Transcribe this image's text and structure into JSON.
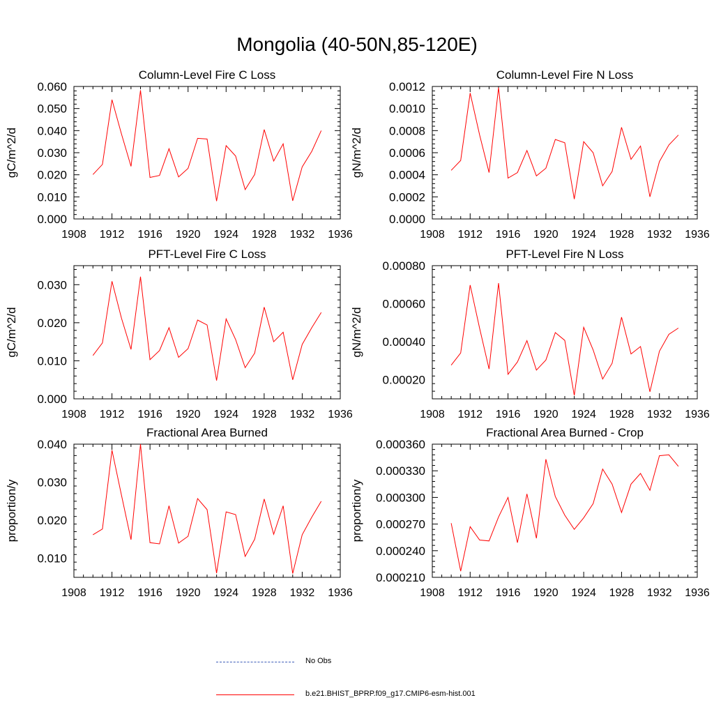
{
  "title": "Mongolia (40-50N,85-120E)",
  "chart_data": [
    {
      "type": "line",
      "title": "Column-Level Fire C Loss",
      "ylabel": "gC/m^2/d",
      "xlim": [
        1908,
        1936
      ],
      "ylim": [
        0,
        0.06
      ],
      "xticks": [
        1908,
        1912,
        1916,
        1920,
        1924,
        1928,
        1932,
        1936
      ],
      "yticks": [
        "0.000",
        "0.010",
        "0.020",
        "0.030",
        "0.040",
        "0.050",
        "0.060"
      ],
      "x": [
        1910,
        1911,
        1912,
        1913,
        1914,
        1915,
        1916,
        1917,
        1918,
        1919,
        1920,
        1921,
        1922,
        1923,
        1924,
        1925,
        1926,
        1927,
        1928,
        1929,
        1930,
        1931,
        1932,
        1933,
        1934
      ],
      "series": [
        {
          "name": "b.e21.BHIST_BPRP.f09_g17.CMIP6-esm-hist.001",
          "color": "#ff0000",
          "values": [
            0.0201,
            0.0247,
            0.054,
            0.0385,
            0.0238,
            0.0583,
            0.0188,
            0.0197,
            0.0318,
            0.019,
            0.0229,
            0.0365,
            0.0362,
            0.0081,
            0.0332,
            0.0285,
            0.0133,
            0.0201,
            0.0405,
            0.0262,
            0.034,
            0.0082,
            0.0236,
            0.0306,
            0.04
          ]
        }
      ]
    },
    {
      "type": "line",
      "title": "Column-Level Fire N Loss",
      "ylabel": "gN/m^2/d",
      "xlim": [
        1908,
        1936
      ],
      "ylim": [
        0,
        0.0012
      ],
      "xticks": [
        1908,
        1912,
        1916,
        1920,
        1924,
        1928,
        1932,
        1936
      ],
      "yticks": [
        "0.0000",
        "0.0002",
        "0.0004",
        "0.0006",
        "0.0008",
        "0.0010",
        "0.0012"
      ],
      "x": [
        1910,
        1911,
        1912,
        1913,
        1914,
        1915,
        1916,
        1917,
        1918,
        1919,
        1920,
        1921,
        1922,
        1923,
        1924,
        1925,
        1926,
        1927,
        1928,
        1929,
        1930,
        1931,
        1932,
        1933,
        1934
      ],
      "series": [
        {
          "name": "b.e21.BHIST_BPRP.f09_g17.CMIP6-esm-hist.001",
          "color": "#ff0000",
          "values": [
            0.00044,
            0.00053,
            0.00114,
            0.00076,
            0.00042,
            0.00119,
            0.00037,
            0.00042,
            0.00062,
            0.00039,
            0.00046,
            0.00072,
            0.00069,
            0.00018,
            0.0007,
            0.0006,
            0.0003,
            0.00043,
            0.00083,
            0.00054,
            0.00066,
            0.0002,
            0.00052,
            0.00067,
            0.00076
          ]
        }
      ]
    },
    {
      "type": "line",
      "title": "PFT-Level Fire C Loss",
      "ylabel": "gC/m^2/d",
      "xlim": [
        1908,
        1936
      ],
      "ylim": [
        0,
        0.035
      ],
      "xticks": [
        1908,
        1912,
        1916,
        1920,
        1924,
        1928,
        1932,
        1936
      ],
      "yticks": [
        "0.000",
        "0.010",
        "0.020",
        "0.030"
      ],
      "x": [
        1910,
        1911,
        1912,
        1913,
        1914,
        1915,
        1916,
        1917,
        1918,
        1919,
        1920,
        1921,
        1922,
        1923,
        1924,
        1925,
        1926,
        1927,
        1928,
        1929,
        1930,
        1931,
        1932,
        1933,
        1934
      ],
      "series": [
        {
          "name": "b.e21.BHIST_BPRP.f09_g17.CMIP6-esm-hist.001",
          "color": "#ff0000",
          "values": [
            0.0114,
            0.0147,
            0.0309,
            0.0212,
            0.013,
            0.0321,
            0.0103,
            0.0127,
            0.0187,
            0.0109,
            0.0132,
            0.0207,
            0.0194,
            0.0048,
            0.021,
            0.0156,
            0.0082,
            0.012,
            0.0241,
            0.015,
            0.0175,
            0.005,
            0.0143,
            0.0187,
            0.0227
          ]
        }
      ]
    },
    {
      "type": "line",
      "title": "PFT-Level Fire N Loss",
      "ylabel": "gN/m^2/d",
      "xlim": [
        1908,
        1936
      ],
      "ylim": [
        0.0001,
        0.0008
      ],
      "xticks": [
        1908,
        1912,
        1916,
        1920,
        1924,
        1928,
        1932,
        1936
      ],
      "yticks": [
        "0.00020",
        "0.00040",
        "0.00060",
        "0.00080"
      ],
      "x": [
        1910,
        1911,
        1912,
        1913,
        1914,
        1915,
        1916,
        1917,
        1918,
        1919,
        1920,
        1921,
        1922,
        1923,
        1924,
        1925,
        1926,
        1927,
        1928,
        1929,
        1930,
        1931,
        1932,
        1933,
        1934
      ],
      "series": [
        {
          "name": "b.e21.BHIST_BPRP.f09_g17.CMIP6-esm-hist.001",
          "color": "#ff0000",
          "values": [
            0.000277,
            0.000341,
            0.000698,
            0.00047,
            0.000257,
            0.000708,
            0.000229,
            0.000294,
            0.000406,
            0.000251,
            0.000304,
            0.000448,
            0.000407,
            0.000118,
            0.000476,
            0.000357,
            0.000204,
            0.000287,
            0.000529,
            0.000336,
            0.000375,
            0.000137,
            0.00035,
            0.000439,
            0.000472
          ]
        }
      ]
    },
    {
      "type": "line",
      "title": "Fractional Area Burned",
      "ylabel": "proportion/y",
      "xlim": [
        1908,
        1936
      ],
      "ylim": [
        0.005,
        0.04
      ],
      "xticks": [
        1908,
        1912,
        1916,
        1920,
        1924,
        1928,
        1932,
        1936
      ],
      "yticks": [
        "0.010",
        "0.020",
        "0.030",
        "0.040"
      ],
      "x": [
        1910,
        1911,
        1912,
        1913,
        1914,
        1915,
        1916,
        1917,
        1918,
        1919,
        1920,
        1921,
        1922,
        1923,
        1924,
        1925,
        1926,
        1927,
        1928,
        1929,
        1930,
        1931,
        1932,
        1933,
        1934
      ],
      "series": [
        {
          "name": "b.e21.BHIST_BPRP.f09_g17.CMIP6-esm-hist.001",
          "color": "#ff0000",
          "values": [
            0.0162,
            0.0177,
            0.0384,
            0.0266,
            0.0149,
            0.04,
            0.0141,
            0.0138,
            0.0238,
            0.014,
            0.0158,
            0.0257,
            0.0228,
            0.0061,
            0.0222,
            0.0215,
            0.0105,
            0.015,
            0.0256,
            0.0163,
            0.0238,
            0.006,
            0.0162,
            0.0208,
            0.025
          ]
        }
      ]
    },
    {
      "type": "line",
      "title": "Fractional Area Burned - Crop",
      "ylabel": "proportion/y",
      "xlim": [
        1908,
        1936
      ],
      "ylim": [
        0.00021,
        0.00036
      ],
      "xticks": [
        1908,
        1912,
        1916,
        1920,
        1924,
        1928,
        1932,
        1936
      ],
      "yticks": [
        "0.000210",
        "0.000240",
        "0.000270",
        "0.000300",
        "0.000330",
        "0.000360"
      ],
      "x": [
        1910,
        1911,
        1912,
        1913,
        1914,
        1915,
        1916,
        1917,
        1918,
        1919,
        1920,
        1921,
        1922,
        1923,
        1924,
        1925,
        1926,
        1927,
        1928,
        1929,
        1930,
        1931,
        1932,
        1933,
        1934
      ],
      "series": [
        {
          "name": "b.e21.BHIST_BPRP.f09_g17.CMIP6-esm-hist.001",
          "color": "#ff0000",
          "values": [
            0.000271,
            0.000217,
            0.000267,
            0.000252,
            0.000251,
            0.000278,
            0.0003,
            0.000249,
            0.000304,
            0.000254,
            0.000343,
            0.000301,
            0.00028,
            0.000264,
            0.000277,
            0.000293,
            0.000332,
            0.000315,
            0.000283,
            0.000315,
            0.000327,
            0.000308,
            0.000347,
            0.000348,
            0.000335
          ]
        }
      ]
    }
  ],
  "legend": [
    {
      "label": "No Obs",
      "color": "#3b5bb8",
      "style": "dashed"
    },
    {
      "label": "b.e21.BHIST_BPRP.f09_g17.CMIP6-esm-hist.001",
      "color": "#ff0000",
      "style": "solid"
    }
  ]
}
